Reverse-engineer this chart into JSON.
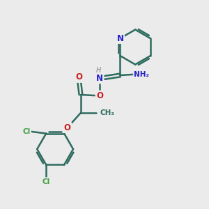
{
  "background_color": "#ebebeb",
  "bond_color": "#2d6b5e",
  "bond_width": 1.8,
  "atom_colors": {
    "N": "#2020cc",
    "O": "#cc2020",
    "Cl": "#40a040",
    "C": "#2d6b5e",
    "H": "#888888"
  },
  "font_size_atom": 8.5,
  "font_size_small": 7.5,
  "font_size_h": 7.0
}
